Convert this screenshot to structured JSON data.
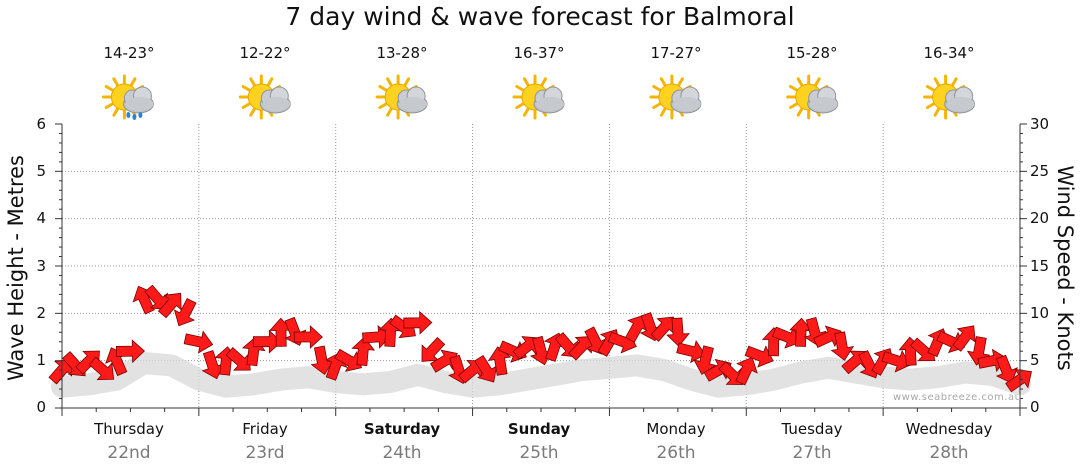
{
  "chart_data": {
    "type": "line",
    "title": "7 day wind & wave forecast for Balmoral",
    "ylabel_left": "Wave Height - Metres",
    "ylabel_right": "Wind Speed - Knots",
    "ylim_left": [
      0,
      6
    ],
    "ylim_right": [
      0,
      30
    ],
    "yticks_left": [
      "0",
      "1",
      "2",
      "3",
      "4",
      "5",
      "6"
    ],
    "yticks_right": [
      "0",
      "5",
      "10",
      "15",
      "20",
      "25",
      "30"
    ],
    "grid": true,
    "days": [
      {
        "name": "Thursday",
        "date": "22nd",
        "temp": "14-23°",
        "icon": "sun-cloud-showers-icon",
        "bold": false
      },
      {
        "name": "Friday",
        "date": "23rd",
        "temp": "12-22°",
        "icon": "sun-cloud-icon",
        "bold": false
      },
      {
        "name": "Saturday",
        "date": "24th",
        "temp": "13-28°",
        "icon": "sun-cloud-icon",
        "bold": true
      },
      {
        "name": "Sunday",
        "date": "25th",
        "temp": "16-37°",
        "icon": "sun-cloud-icon",
        "bold": true
      },
      {
        "name": "Monday",
        "date": "26th",
        "temp": "17-27°",
        "icon": "sun-cloud-icon",
        "bold": false
      },
      {
        "name": "Tuesday",
        "date": "27th",
        "temp": "15-28°",
        "icon": "sun-cloud-icon",
        "bold": false
      },
      {
        "name": "Wednesday",
        "date": "28th",
        "temp": "16-34°",
        "icon": "sun-cloud-icon",
        "bold": false
      }
    ],
    "series": [
      {
        "measure": "wave_height_m",
        "color": "#d8d8d8",
        "x_day": [
          0.0,
          0.2,
          0.4,
          0.6,
          0.8,
          1.0,
          1.2,
          1.4,
          1.6,
          1.8,
          2.0,
          2.2,
          2.4,
          2.6,
          2.8,
          3.0,
          3.2,
          3.4,
          3.6,
          3.8,
          4.0,
          4.2,
          4.4,
          4.6,
          4.8,
          5.0,
          5.2,
          5.4,
          5.6,
          5.8,
          6.0,
          6.2,
          6.4,
          6.6,
          6.8,
          7.0
        ],
        "values": [
          0.45,
          0.5,
          0.6,
          0.95,
          0.9,
          0.6,
          0.45,
          0.5,
          0.6,
          0.65,
          0.55,
          0.5,
          0.55,
          0.7,
          0.55,
          0.45,
          0.5,
          0.6,
          0.7,
          0.8,
          0.85,
          0.9,
          0.8,
          0.6,
          0.45,
          0.5,
          0.6,
          0.75,
          0.85,
          0.75,
          0.65,
          0.6,
          0.65,
          0.75,
          0.7,
          0.5
        ]
      },
      {
        "measure": "wind_speed_knots",
        "color": "#ff1a1a",
        "x_day": [
          0.0,
          0.1,
          0.2,
          0.3,
          0.4,
          0.5,
          0.6,
          0.7,
          0.8,
          0.9,
          1.0,
          1.1,
          1.2,
          1.3,
          1.4,
          1.5,
          1.6,
          1.7,
          1.8,
          1.9,
          2.0,
          2.1,
          2.2,
          2.3,
          2.4,
          2.5,
          2.6,
          2.7,
          2.8,
          2.9,
          3.0,
          3.1,
          3.2,
          3.3,
          3.4,
          3.5,
          3.6,
          3.7,
          3.8,
          3.9,
          4.0,
          4.1,
          4.2,
          4.3,
          4.4,
          4.5,
          4.6,
          4.7,
          4.8,
          4.9,
          5.0,
          5.1,
          5.2,
          5.3,
          5.4,
          5.5,
          5.6,
          5.7,
          5.8,
          5.9,
          6.0,
          6.1,
          6.2,
          6.3,
          6.4,
          6.5,
          6.6,
          6.7,
          6.8,
          6.9,
          7.0
        ],
        "values": [
          4,
          4.5,
          5,
          4,
          5,
          6,
          11.5,
          11.5,
          11,
          10,
          7,
          4.5,
          5,
          5,
          6,
          7,
          8,
          8,
          7.5,
          5,
          4.5,
          5,
          6,
          7.5,
          8,
          8.5,
          9,
          6,
          5,
          4,
          4,
          4,
          5,
          6,
          6.5,
          6,
          6.5,
          6.5,
          6.5,
          7,
          7,
          7,
          8.5,
          8.5,
          8.5,
          8,
          6,
          5,
          4,
          3.5,
          4,
          5.5,
          7,
          7.5,
          8,
          8,
          7.5,
          6.5,
          5,
          4.5,
          5,
          5,
          6,
          6,
          7,
          7,
          7.5,
          6,
          5,
          4,
          3
        ]
      }
    ],
    "watermark": "www.seabreeze.com.au"
  }
}
